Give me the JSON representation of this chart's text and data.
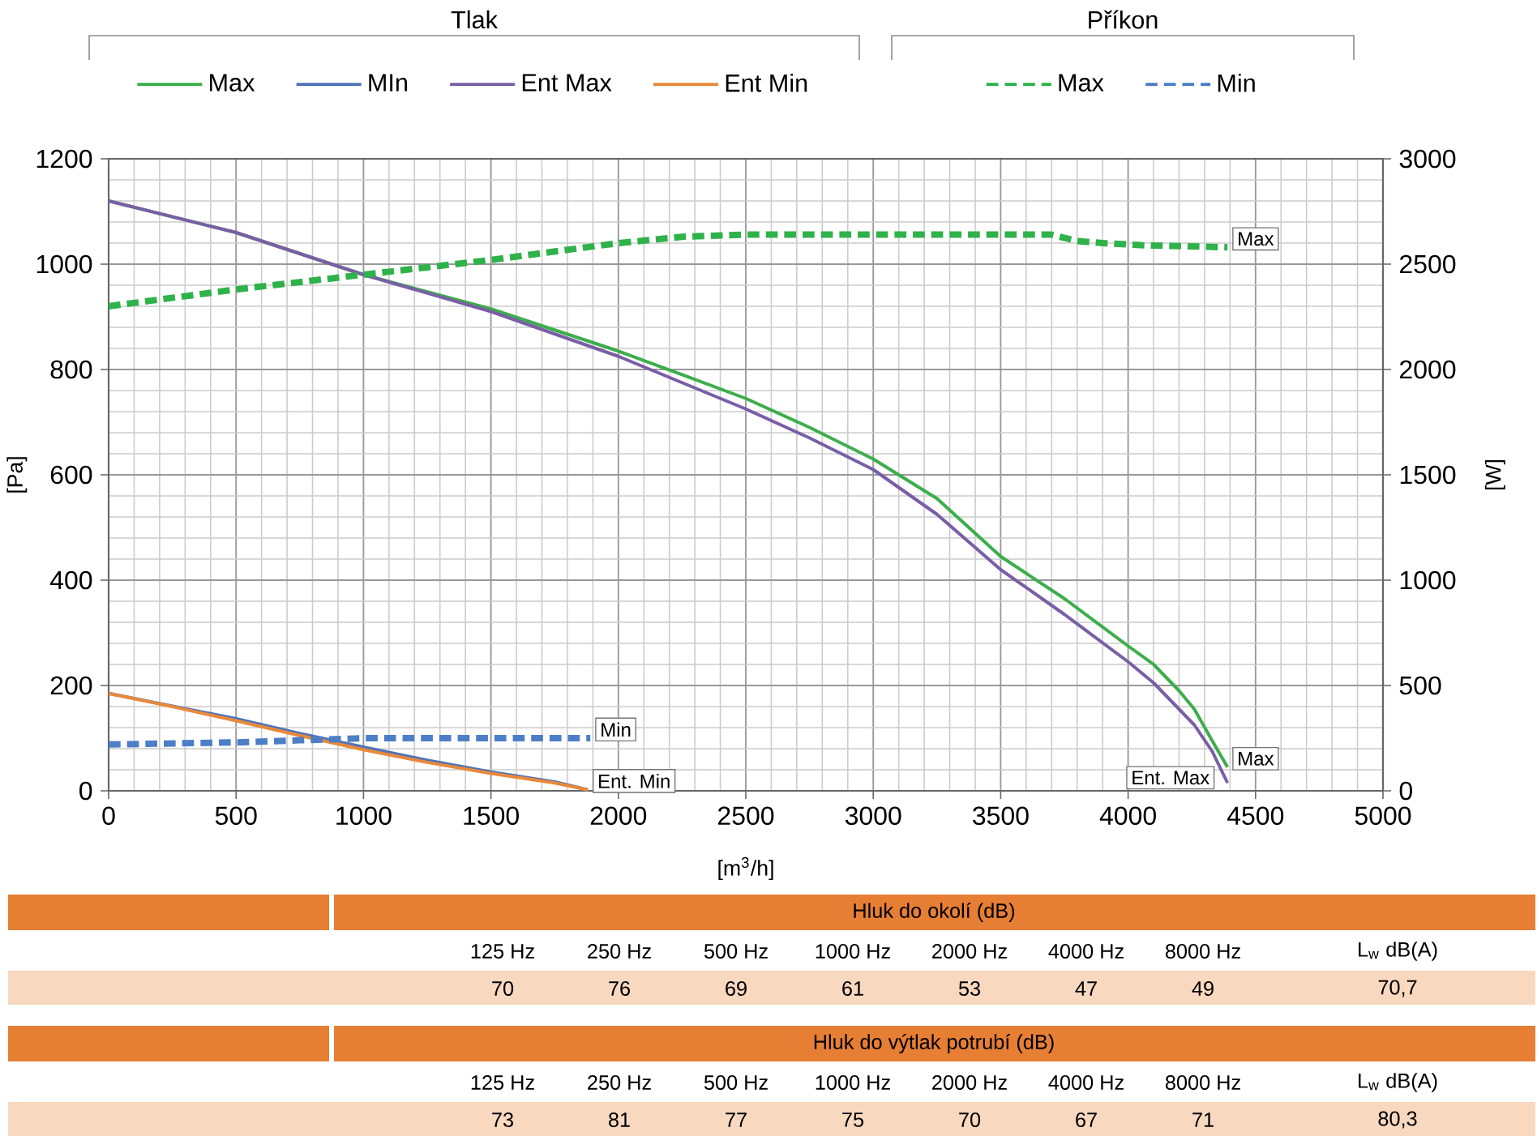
{
  "chart_data": [
    {
      "type": "line",
      "xlabel": "[m$^{3}$/h]",
      "ylabel": "[Pa]",
      "y2label": "[W]",
      "xlim": [
        0,
        5000
      ],
      "xticks": [
        0,
        500,
        1000,
        1500,
        2000,
        2500,
        3000,
        3500,
        4000,
        4500,
        5000
      ],
      "ylim": [
        0,
        1200
      ],
      "yticks": [
        0,
        200,
        400,
        600,
        800,
        1000,
        1200
      ],
      "y2lim": [
        0,
        3000
      ],
      "y2ticks": [
        0,
        500,
        1000,
        1500,
        2000,
        2500,
        3000
      ],
      "grid": true,
      "legend": "top",
      "series": [
        {
          "name": "Max",
          "color": "#3cae4b",
          "line_style": "solid",
          "x": [
            0,
            500,
            1000,
            1500,
            2000,
            2250,
            2500,
            2750,
            3000,
            3250,
            3500,
            3750,
            4000,
            4100,
            4200,
            4260,
            4330,
            4390
          ],
          "values": [
            1120,
            1060,
            980,
            915,
            835,
            790,
            745,
            690,
            630,
            555,
            445,
            365,
            275,
            240,
            190,
            155,
            95,
            45
          ]
        },
        {
          "name": "MIn",
          "color": "#4f74b8",
          "line_style": "solid",
          "x": [
            0,
            250,
            500,
            750,
            1000,
            1250,
            1500,
            1750,
            1880
          ],
          "values": [
            185,
            161,
            137,
            109,
            83,
            58,
            36,
            17,
            2
          ]
        },
        {
          "name": "Ent Max",
          "color": "#7a5ea6",
          "line_style": "solid",
          "x": [
            0,
            500,
            1000,
            1500,
            2000,
            2250,
            2500,
            2750,
            3000,
            3250,
            3500,
            3750,
            4000,
            4100,
            4200,
            4260,
            4330,
            4390
          ],
          "values": [
            1120,
            1060,
            980,
            910,
            825,
            775,
            725,
            670,
            610,
            525,
            420,
            335,
            245,
            205,
            155,
            125,
            75,
            15
          ]
        },
        {
          "name": "Ent Min",
          "color": "#e8893b",
          "line_style": "solid",
          "x": [
            0,
            250,
            500,
            750,
            1000,
            1250,
            1500,
            1750,
            1880
          ],
          "values": [
            185,
            160,
            133,
            105,
            78,
            54,
            33,
            15,
            2
          ]
        },
        {
          "name": "Max",
          "color": "#2fb24a",
          "line_style": "dashed",
          "axis": "y2",
          "x": [
            0,
            500,
            1000,
            1500,
            2000,
            2250,
            2500,
            3000,
            3500,
            3700,
            3800,
            3900,
            4050,
            4390
          ],
          "values": [
            2300,
            2380,
            2450,
            2520,
            2600,
            2630,
            2640,
            2640,
            2640,
            2640,
            2610,
            2600,
            2590,
            2580
          ]
        },
        {
          "name": "Min",
          "color": "#4d7fc7",
          "line_style": "dashed",
          "axis": "y2",
          "x": [
            0,
            500,
            750,
            1000,
            1890
          ],
          "values": [
            220,
            230,
            240,
            250,
            250
          ]
        }
      ],
      "annotations": [
        "Tlak",
        "Příkon",
        {
          "text": "Max",
          "x": 4390,
          "y": 1032
        },
        {
          "text": "Min",
          "x": 1890,
          "y": 100
        },
        {
          "text": "Ent. Min",
          "x": 1880,
          "y": 2
        },
        {
          "text": "Ent. Max",
          "x": 4390,
          "y": 15
        },
        {
          "text": "Max",
          "x": 4390,
          "y": 45
        }
      ]
    },
    {
      "type": "other",
      "title": "Hluk do okolí (dB)",
      "categories": [
        "125 Hz",
        "250 Hz",
        "500 Hz",
        "1000 Hz",
        "2000 Hz",
        "4000 Hz",
        "8000 Hz",
        "L$_{w}$ dB(A)"
      ],
      "value_labels": [
        "70",
        "76",
        "69",
        "61",
        "53",
        "47",
        "49",
        "70,7"
      ]
    },
    {
      "type": "other",
      "title": "Hluk do výtlak potrubí (dB)",
      "categories": [
        "125 Hz",
        "250 Hz",
        "500 Hz",
        "1000 Hz",
        "2000 Hz",
        "4000 Hz",
        "8000 Hz",
        "L$_{w}$ dB(A)"
      ],
      "value_labels": [
        "73",
        "81",
        "77",
        "75",
        "70",
        "67",
        "71",
        "80,3"
      ]
    }
  ]
}
